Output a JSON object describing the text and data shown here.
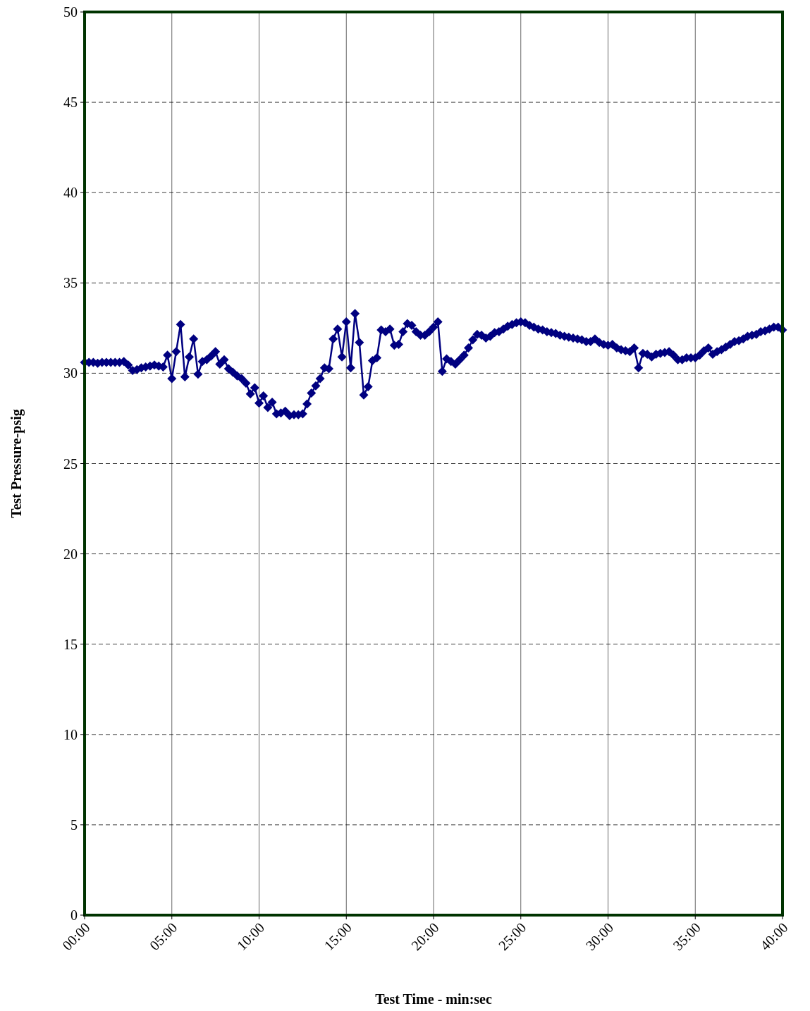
{
  "chart_data": {
    "type": "line",
    "xlabel": "Test Time - min:sec",
    "ylabel": "Test Pressure-psig",
    "xlim": [
      0,
      40
    ],
    "xticks": [
      {
        "value": 0,
        "label": "00:00"
      },
      {
        "value": 5,
        "label": "05:00"
      },
      {
        "value": 10,
        "label": "10:00"
      },
      {
        "value": 15,
        "label": "15:00"
      },
      {
        "value": 20,
        "label": "20:00"
      },
      {
        "value": 25,
        "label": "25:00"
      },
      {
        "value": 30,
        "label": "30:00"
      },
      {
        "value": 35,
        "label": "35:00"
      },
      {
        "value": 40,
        "label": "40:00"
      }
    ],
    "ylim": [
      0,
      50
    ],
    "yticks": [
      0,
      5,
      10,
      15,
      20,
      25,
      30,
      35,
      40,
      45,
      50
    ],
    "grid": true,
    "marker": "diamond",
    "line_style": "solid",
    "series": [
      {
        "color": "#000080",
        "x": [
          0,
          0.25,
          0.5,
          0.75,
          1,
          1.25,
          1.5,
          1.75,
          2,
          2.25,
          2.5,
          2.75,
          3,
          3.25,
          3.5,
          3.75,
          4,
          4.25,
          4.5,
          4.75,
          5,
          5.25,
          5.5,
          5.75,
          6,
          6.25,
          6.5,
          6.75,
          7,
          7.25,
          7.5,
          7.75,
          8,
          8.25,
          8.5,
          8.75,
          9,
          9.25,
          9.5,
          9.75,
          10,
          10.25,
          10.5,
          10.75,
          11,
          11.25,
          11.5,
          11.75,
          12,
          12.25,
          12.5,
          12.75,
          13,
          13.25,
          13.5,
          13.75,
          14,
          14.25,
          14.5,
          14.75,
          15,
          15.25,
          15.5,
          15.75,
          16,
          16.25,
          16.5,
          16.75,
          17,
          17.25,
          17.5,
          17.75,
          18,
          18.25,
          18.5,
          18.75,
          19,
          19.25,
          19.5,
          19.75,
          20,
          20.25,
          20.5,
          20.75,
          21,
          21.25,
          21.5,
          21.75,
          22,
          22.25,
          22.5,
          22.75,
          23,
          23.25,
          23.5,
          23.75,
          24,
          24.25,
          24.5,
          24.75,
          25,
          25.25,
          25.5,
          25.75,
          26,
          26.25,
          26.5,
          26.75,
          27,
          27.25,
          27.5,
          27.75,
          28,
          28.25,
          28.5,
          28.75,
          29,
          29.25,
          29.5,
          29.75,
          30,
          30.25,
          30.5,
          30.75,
          31,
          31.25,
          31.5,
          31.75,
          32,
          32.25,
          32.5,
          32.75,
          33,
          33.25,
          33.5,
          33.75,
          34,
          34.25,
          34.5,
          34.75,
          35,
          35.25,
          35.5,
          35.75,
          36,
          36.25,
          36.5,
          36.75,
          37,
          37.25,
          37.5,
          37.75,
          38,
          38.25,
          38.5,
          38.75,
          39,
          39.25,
          39.5,
          39.75,
          40
        ],
        "values": [
          30.6,
          30.6,
          30.6,
          30.55,
          30.6,
          30.6,
          30.6,
          30.6,
          30.6,
          30.65,
          30.45,
          30.15,
          30.2,
          30.3,
          30.35,
          30.4,
          30.45,
          30.4,
          30.35,
          31.0,
          29.7,
          31.2,
          32.7,
          29.8,
          30.9,
          31.9,
          29.95,
          30.65,
          30.75,
          30.95,
          31.2,
          30.5,
          30.75,
          30.25,
          30.05,
          29.85,
          29.7,
          29.45,
          28.85,
          29.2,
          28.35,
          28.75,
          28.1,
          28.4,
          27.75,
          27.8,
          27.9,
          27.65,
          27.7,
          27.7,
          27.75,
          28.3,
          28.9,
          29.3,
          29.7,
          30.3,
          30.25,
          31.9,
          32.45,
          30.9,
          32.85,
          30.3,
          33.3,
          31.7,
          28.8,
          29.25,
          30.7,
          30.85,
          32.4,
          32.3,
          32.45,
          31.55,
          31.6,
          32.3,
          32.75,
          32.65,
          32.3,
          32.1,
          32.1,
          32.3,
          32.55,
          32.85,
          30.1,
          30.8,
          30.65,
          30.5,
          30.75,
          31.0,
          31.4,
          31.85,
          32.15,
          32.1,
          31.95,
          32.05,
          32.25,
          32.3,
          32.45,
          32.6,
          32.7,
          32.8,
          32.85,
          32.8,
          32.65,
          32.55,
          32.45,
          32.4,
          32.3,
          32.25,
          32.2,
          32.1,
          32.05,
          32.0,
          31.95,
          31.9,
          31.85,
          31.75,
          31.75,
          31.9,
          31.7,
          31.6,
          31.55,
          31.6,
          31.4,
          31.3,
          31.25,
          31.2,
          31.4,
          30.3,
          31.1,
          31.05,
          30.9,
          31.05,
          31.1,
          31.15,
          31.2,
          31.0,
          30.75,
          30.75,
          30.85,
          30.85,
          30.85,
          31.0,
          31.25,
          31.4,
          31.05,
          31.2,
          31.3,
          31.45,
          31.6,
          31.75,
          31.8,
          31.9,
          32.05,
          32.1,
          32.15,
          32.3,
          32.35,
          32.45,
          32.55,
          32.55,
          32.4
        ]
      }
    ]
  }
}
